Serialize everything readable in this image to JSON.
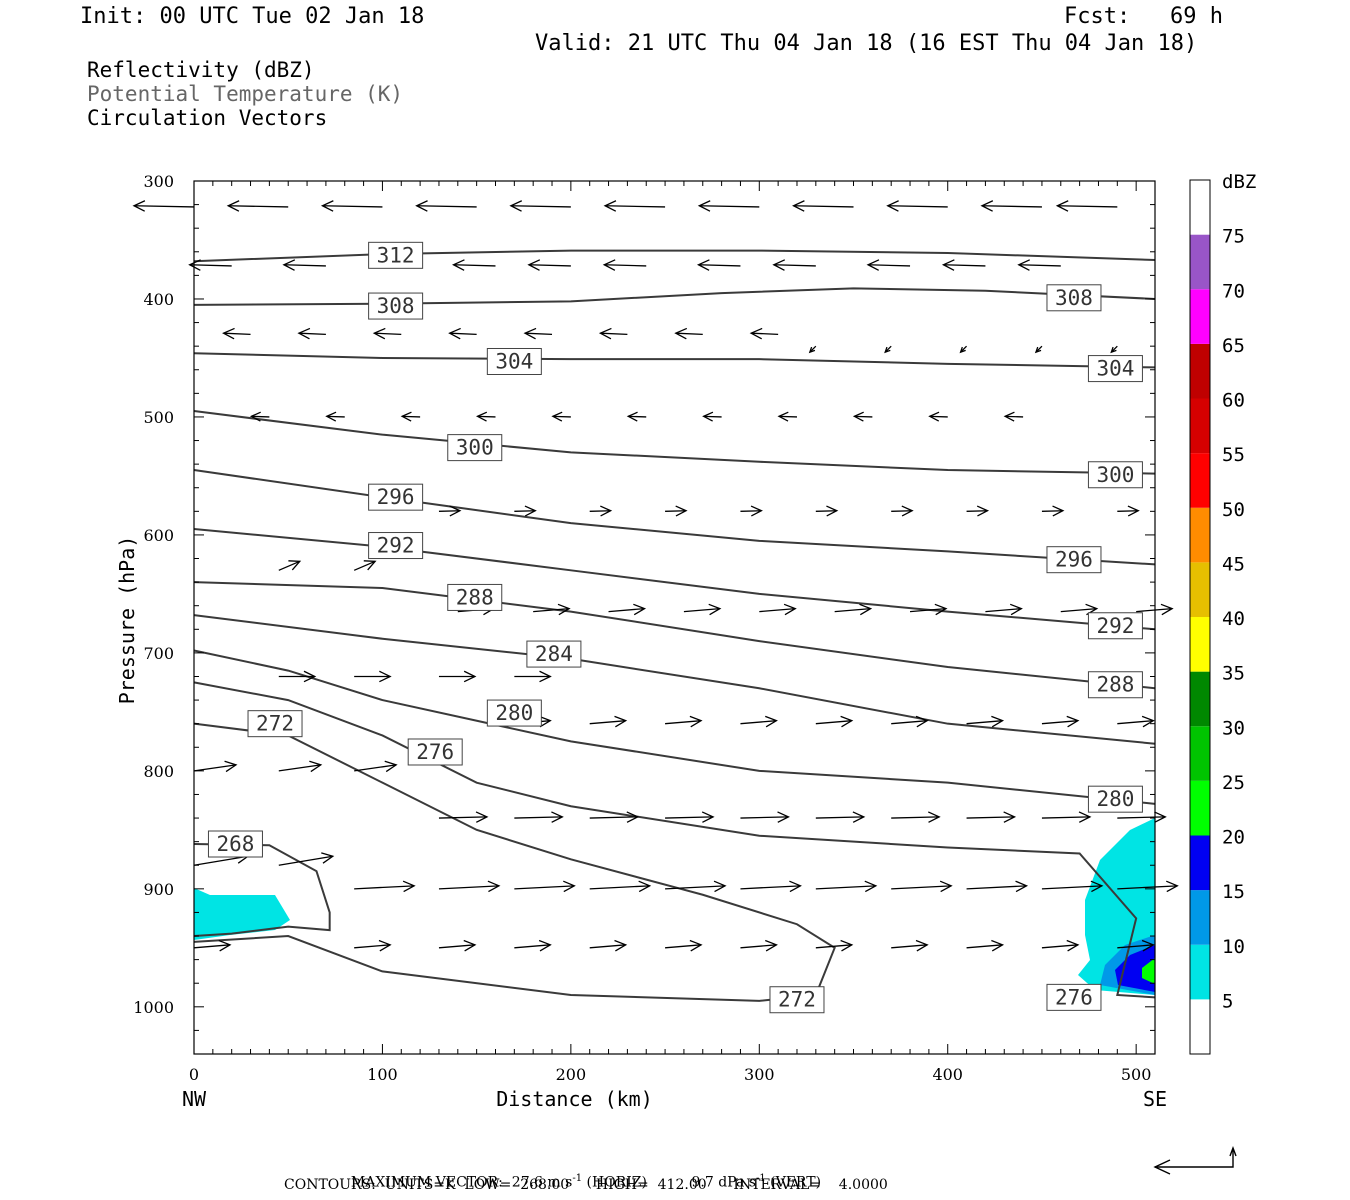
{
  "header": {
    "init": "Init: 00 UTC Tue 02 Jan 18",
    "fcst": "Fcst:   69 h",
    "valid": "Valid: 21 UTC Thu 04 Jan 18 (16 EST Thu 04 Jan 18)"
  },
  "legend": {
    "line1": "Reflectivity (dBZ)",
    "line2": "Potential Temperature (K)",
    "line3": "Circulation Vectors"
  },
  "footer": {
    "max_vector_label": "MAXIMUM VECTOR:",
    "horiz": "27.6 m s",
    "horiz_sup": "-1",
    "horiz_tag": "(HORIZ)",
    "vert": "9.7 dPa s",
    "vert_sup": "-1",
    "vert_tag": "(VERT)",
    "contours": "CONTOURS:  UNITS=K  LOW=  268.00      HIGH=  412.00      INTERVAL=    4.0000"
  },
  "chart_data": {
    "type": "cross-section",
    "xlabel": "Distance (km)",
    "ylabel": "Pressure (hPa)",
    "xlim": [
      0,
      510
    ],
    "ylim": [
      1040,
      300
    ],
    "x_ticks": [
      "0",
      "100",
      "200",
      "300",
      "400",
      "500"
    ],
    "y_ticks": [
      "300",
      "400",
      "500",
      "600",
      "700",
      "800",
      "900",
      "1000"
    ],
    "x_end_left": "NW",
    "x_end_right": "SE",
    "colorbar": {
      "unit": "dBZ",
      "levels": [
        "5",
        "10",
        "15",
        "20",
        "25",
        "30",
        "35",
        "40",
        "45",
        "50",
        "55",
        "60",
        "65",
        "70",
        "75"
      ],
      "colors": [
        "#ffffff",
        "#00e4e4",
        "#0099e8",
        "#0000f2",
        "#00ff00",
        "#00c400",
        "#008800",
        "#ffff00",
        "#e6bf00",
        "#ff8c00",
        "#ff0000",
        "#d60000",
        "#bf0000",
        "#ff00ff",
        "#9955c8",
        "#ffffff"
      ]
    },
    "theta_contours": [
      {
        "value": 312,
        "label": "312",
        "lx": 107,
        "lp": 363,
        "pts": [
          [
            0,
            368
          ],
          [
            100,
            362
          ],
          [
            200,
            359
          ],
          [
            300,
            359
          ],
          [
            400,
            361
          ],
          [
            510,
            367
          ]
        ]
      },
      {
        "value": 308,
        "label": "308",
        "lx": 107,
        "lp": 406,
        "pts": [
          [
            0,
            405
          ],
          [
            100,
            404
          ],
          [
            200,
            402
          ],
          [
            280,
            395
          ],
          [
            350,
            391
          ],
          [
            420,
            393
          ],
          [
            510,
            400
          ]
        ]
      },
      {
        "value": 308,
        "label": "308",
        "lx": 467,
        "lp": 399,
        "pts": []
      },
      {
        "value": 304,
        "label": "304",
        "lx": 170,
        "lp": 453,
        "pts": [
          [
            0,
            446
          ],
          [
            100,
            450
          ],
          [
            200,
            451
          ],
          [
            300,
            451
          ],
          [
            400,
            455
          ],
          [
            510,
            458
          ]
        ]
      },
      {
        "value": 304,
        "label": "304",
        "lx": 489,
        "lp": 459,
        "pts": []
      },
      {
        "value": 300,
        "label": "300",
        "lx": 149,
        "lp": 526,
        "pts": [
          [
            0,
            495
          ],
          [
            100,
            515
          ],
          [
            200,
            530
          ],
          [
            300,
            538
          ],
          [
            400,
            545
          ],
          [
            510,
            548
          ]
        ]
      },
      {
        "value": 300,
        "label": "300",
        "lx": 489,
        "lp": 549,
        "pts": []
      },
      {
        "value": 296,
        "label": "296",
        "lx": 107,
        "lp": 568,
        "pts": [
          [
            0,
            545
          ],
          [
            100,
            568
          ],
          [
            200,
            590
          ],
          [
            300,
            605
          ],
          [
            400,
            614
          ],
          [
            510,
            625
          ]
        ]
      },
      {
        "value": 296,
        "label": "296",
        "lx": 467,
        "lp": 621,
        "pts": []
      },
      {
        "value": 292,
        "label": "292",
        "lx": 107,
        "lp": 609,
        "pts": [
          [
            0,
            595
          ],
          [
            100,
            610
          ],
          [
            200,
            630
          ],
          [
            300,
            650
          ],
          [
            400,
            665
          ],
          [
            510,
            680
          ]
        ]
      },
      {
        "value": 292,
        "label": "292",
        "lx": 489,
        "lp": 677,
        "pts": []
      },
      {
        "value": 288,
        "label": "288",
        "lx": 149,
        "lp": 653,
        "pts": [
          [
            0,
            640
          ],
          [
            100,
            645
          ],
          [
            200,
            665
          ],
          [
            300,
            690
          ],
          [
            400,
            712
          ],
          [
            510,
            730
          ]
        ]
      },
      {
        "value": 288,
        "label": "288",
        "lx": 489,
        "lp": 727,
        "pts": []
      },
      {
        "value": 284,
        "label": "284",
        "lx": 191,
        "lp": 701,
        "pts": [
          [
            0,
            668
          ],
          [
            100,
            688
          ],
          [
            200,
            705
          ],
          [
            300,
            730
          ],
          [
            400,
            760
          ],
          [
            510,
            777
          ]
        ]
      },
      {
        "value": 280,
        "label": "280",
        "lx": 170,
        "lp": 751,
        "pts": [
          [
            0,
            698
          ],
          [
            50,
            715
          ],
          [
            100,
            740
          ],
          [
            200,
            775
          ],
          [
            300,
            800
          ],
          [
            400,
            810
          ],
          [
            510,
            828
          ]
        ]
      },
      {
        "value": 280,
        "label": "280",
        "lx": 489,
        "lp": 824,
        "pts": []
      },
      {
        "value": 276,
        "label": "276",
        "lx": 128,
        "lp": 784,
        "pts": [
          [
            0,
            725
          ],
          [
            50,
            740
          ],
          [
            100,
            770
          ],
          [
            150,
            810
          ],
          [
            200,
            830
          ],
          [
            300,
            855
          ],
          [
            400,
            865
          ],
          [
            470,
            870
          ],
          [
            500,
            925
          ],
          [
            490,
            990
          ],
          [
            510,
            992
          ]
        ]
      },
      {
        "value": 276,
        "label": "276",
        "lx": 467,
        "lp": 992,
        "pts": []
      },
      {
        "value": 272,
        "label": "272",
        "lx": 43,
        "lp": 760,
        "pts": [
          [
            0,
            760
          ],
          [
            50,
            770
          ],
          [
            100,
            810
          ],
          [
            150,
            850
          ],
          [
            200,
            875
          ],
          [
            270,
            905
          ],
          [
            320,
            930
          ],
          [
            340,
            950
          ],
          [
            330,
            990
          ],
          [
            300,
            995
          ],
          [
            200,
            990
          ],
          [
            100,
            970
          ],
          [
            50,
            940
          ],
          [
            0,
            945
          ]
        ]
      },
      {
        "value": 272,
        "label": "272",
        "lx": 320,
        "lp": 994,
        "pts": []
      },
      {
        "value": 268,
        "label": "268",
        "lx": 22,
        "lp": 862,
        "pts": [
          [
            0,
            862
          ],
          [
            40,
            863
          ],
          [
            65,
            885
          ],
          [
            72,
            920
          ],
          [
            72,
            935
          ],
          [
            50,
            932
          ],
          [
            20,
            938
          ],
          [
            0,
            940
          ]
        ]
      }
    ],
    "max_vector": {
      "horiz_m_s": 27.6,
      "vert_dPa_s": 9.7
    }
  }
}
